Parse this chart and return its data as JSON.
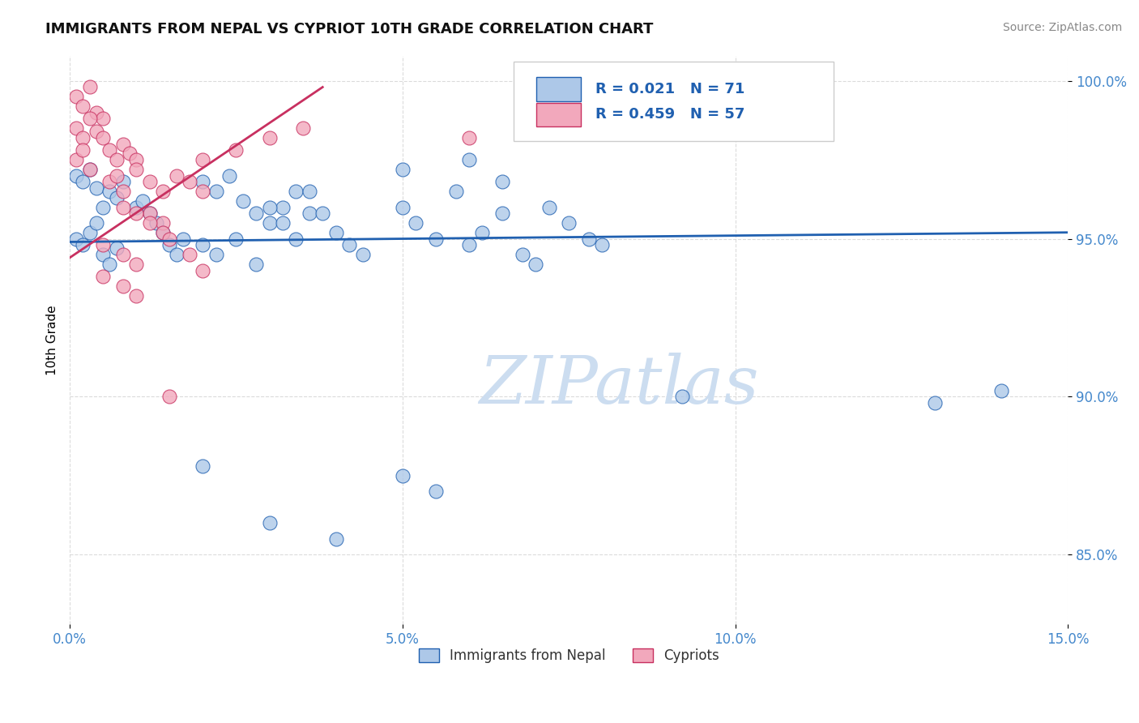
{
  "title": "IMMIGRANTS FROM NEPAL VS CYPRIOT 10TH GRADE CORRELATION CHART",
  "source_text": "Source: ZipAtlas.com",
  "ylabel": "10th Grade",
  "xlim": [
    0.0,
    0.15
  ],
  "ylim": [
    0.828,
    1.008
  ],
  "xticks": [
    0.0,
    0.05,
    0.1,
    0.15
  ],
  "xticklabels": [
    "0.0%",
    "5.0%",
    "10.0%",
    "15.0%"
  ],
  "yticks": [
    0.85,
    0.9,
    0.95,
    1.0
  ],
  "yticklabels": [
    "85.0%",
    "90.0%",
    "95.0%",
    "100.0%"
  ],
  "blue_R": 0.021,
  "blue_N": 71,
  "pink_R": 0.459,
  "pink_N": 57,
  "legend_label_blue": "Immigrants from Nepal",
  "legend_label_pink": "Cypriots",
  "blue_color": "#adc8e8",
  "pink_color": "#f2a8bc",
  "blue_line_color": "#2060b0",
  "pink_line_color": "#c83060",
  "tick_color": "#4488cc",
  "watermark_color": "#ccddf0",
  "watermark": "ZIPatlas",
  "blue_line_x0": 0.0,
  "blue_line_y0": 0.949,
  "blue_line_x1": 0.15,
  "blue_line_y1": 0.952,
  "pink_line_x0": 0.0,
  "pink_line_y0": 0.944,
  "pink_line_x1": 0.038,
  "pink_line_y1": 0.998
}
